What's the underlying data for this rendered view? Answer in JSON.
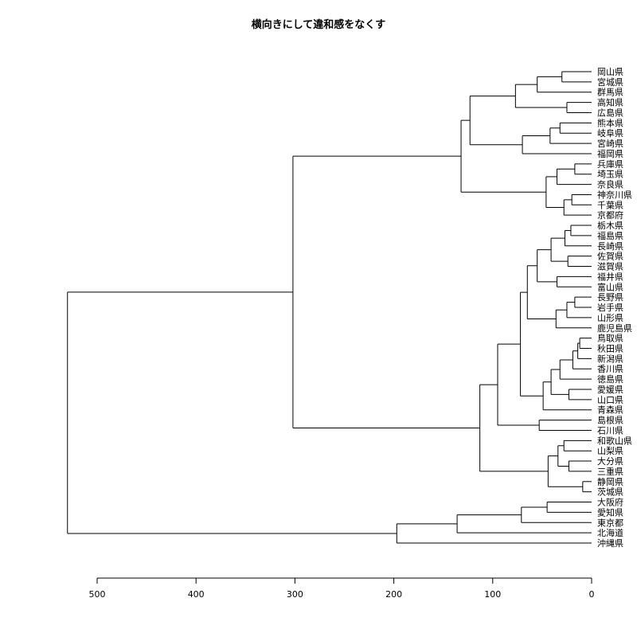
{
  "chart_data": {
    "type": "dendrogram",
    "title": "横向きにして違和感をなくす",
    "orientation": "horizontal",
    "xlim": [
      520,
      0
    ],
    "x_ticks": [
      "500",
      "400",
      "300",
      "200",
      "100",
      "0"
    ],
    "x_tick_values": [
      500,
      400,
      300,
      200,
      100,
      0
    ],
    "leaves": [
      "岡山県",
      "宮城県",
      "群馬県",
      "高知県",
      "広島県",
      "熊本県",
      "岐阜県",
      "宮崎県",
      "福岡県",
      "兵庫県",
      "埼玉県",
      "奈良県",
      "神奈川県",
      "千葉県",
      "京都府",
      "栃木県",
      "福島県",
      "長崎県",
      "佐賀県",
      "滋賀県",
      "福井県",
      "富山県",
      "長野県",
      "岩手県",
      "山形県",
      "鹿児島県",
      "鳥取県",
      "秋田県",
      "新潟県",
      "香川県",
      "徳島県",
      "愛媛県",
      "山口県",
      "青森県",
      "島根県",
      "石川県",
      "和歌山県",
      "山梨県",
      "大分県",
      "三重県",
      "静岡県",
      "茨城県",
      "大阪府",
      "愛知県",
      "東京都",
      "北海道",
      "沖縄県"
    ],
    "tree": {
      "h": 530,
      "c": [
        {
          "h": 302,
          "c": [
            {
              "h": 132,
              "c": [
                {
                  "h": 123,
                  "c": [
                    {
                      "h": 77,
                      "c": [
                        {
                          "h": 55,
                          "c": [
                            {
                              "h": 30,
                              "c": [
                                0,
                                1
                              ]
                            },
                            2
                          ]
                        },
                        {
                          "h": 25,
                          "c": [
                            3,
                            4
                          ]
                        }
                      ]
                    },
                    {
                      "h": 70,
                      "c": [
                        {
                          "h": 42,
                          "c": [
                            {
                              "h": 32,
                              "c": [
                                5,
                                6
                              ]
                            },
                            7
                          ]
                        },
                        8
                      ]
                    }
                  ]
                },
                {
                  "h": 46,
                  "c": [
                    {
                      "h": 35,
                      "c": [
                        {
                          "h": 17,
                          "c": [
                            9,
                            10
                          ]
                        },
                        11
                      ]
                    },
                    {
                      "h": 28,
                      "c": [
                        {
                          "h": 20,
                          "c": [
                            12,
                            13
                          ]
                        },
                        14
                      ]
                    }
                  ]
                }
              ]
            },
            {
              "h": 113,
              "c": [
                {
                  "h": 95,
                  "c": [
                    {
                      "h": 72,
                      "c": [
                        {
                          "h": 65,
                          "c": [
                            {
                              "h": 55,
                              "c": [
                                {
                                  "h": 41,
                                  "c": [
                                    {
                                      "h": 27,
                                      "c": [
                                        {
                                          "h": 21,
                                          "c": [
                                            15,
                                            16
                                          ]
                                        },
                                        17
                                      ]
                                    },
                                    {
                                      "h": 24,
                                      "c": [
                                        18,
                                        19
                                      ]
                                    }
                                  ]
                                },
                                {
                                  "h": 35,
                                  "c": [
                                    20,
                                    21
                                  ]
                                }
                              ]
                            },
                            {
                              "h": 36,
                              "c": [
                                {
                                  "h": 25,
                                  "c": [
                                    {
                                      "h": 17,
                                      "c": [
                                        22,
                                        23
                                      ]
                                    },
                                    24
                                  ]
                                },
                                25
                              ]
                            }
                          ]
                        },
                        {
                          "h": 49,
                          "c": [
                            {
                              "h": 41,
                              "c": [
                                {
                                  "h": 32,
                                  "c": [
                                    {
                                      "h": 19,
                                      "c": [
                                        {
                                          "h": 14,
                                          "c": [
                                            {
                                              "h": 12,
                                              "c": [
                                                26,
                                                27
                                              ]
                                            },
                                            28
                                          ]
                                        },
                                        29
                                      ]
                                    },
                                    30
                                  ]
                                },
                                {
                                  "h": 23,
                                  "c": [
                                    31,
                                    32
                                  ]
                                }
                              ]
                            },
                            33
                          ]
                        }
                      ]
                    },
                    {
                      "h": 53,
                      "c": [
                        34,
                        35
                      ]
                    }
                  ]
                },
                {
                  "h": 44,
                  "c": [
                    {
                      "h": 34,
                      "c": [
                        {
                          "h": 28,
                          "c": [
                            36,
                            37
                          ]
                        },
                        {
                          "h": 23,
                          "c": [
                            38,
                            39
                          ]
                        }
                      ]
                    },
                    {
                      "h": 9,
                      "c": [
                        40,
                        41
                      ]
                    }
                  ]
                }
              ]
            }
          ]
        },
        {
          "h": 197,
          "c": [
            {
              "h": 136,
              "c": [
                {
                  "h": 71,
                  "c": [
                    {
                      "h": 45,
                      "c": [
                        42,
                        43
                      ]
                    },
                    44
                  ]
                },
                45
              ]
            },
            46
          ]
        }
      ]
    }
  }
}
